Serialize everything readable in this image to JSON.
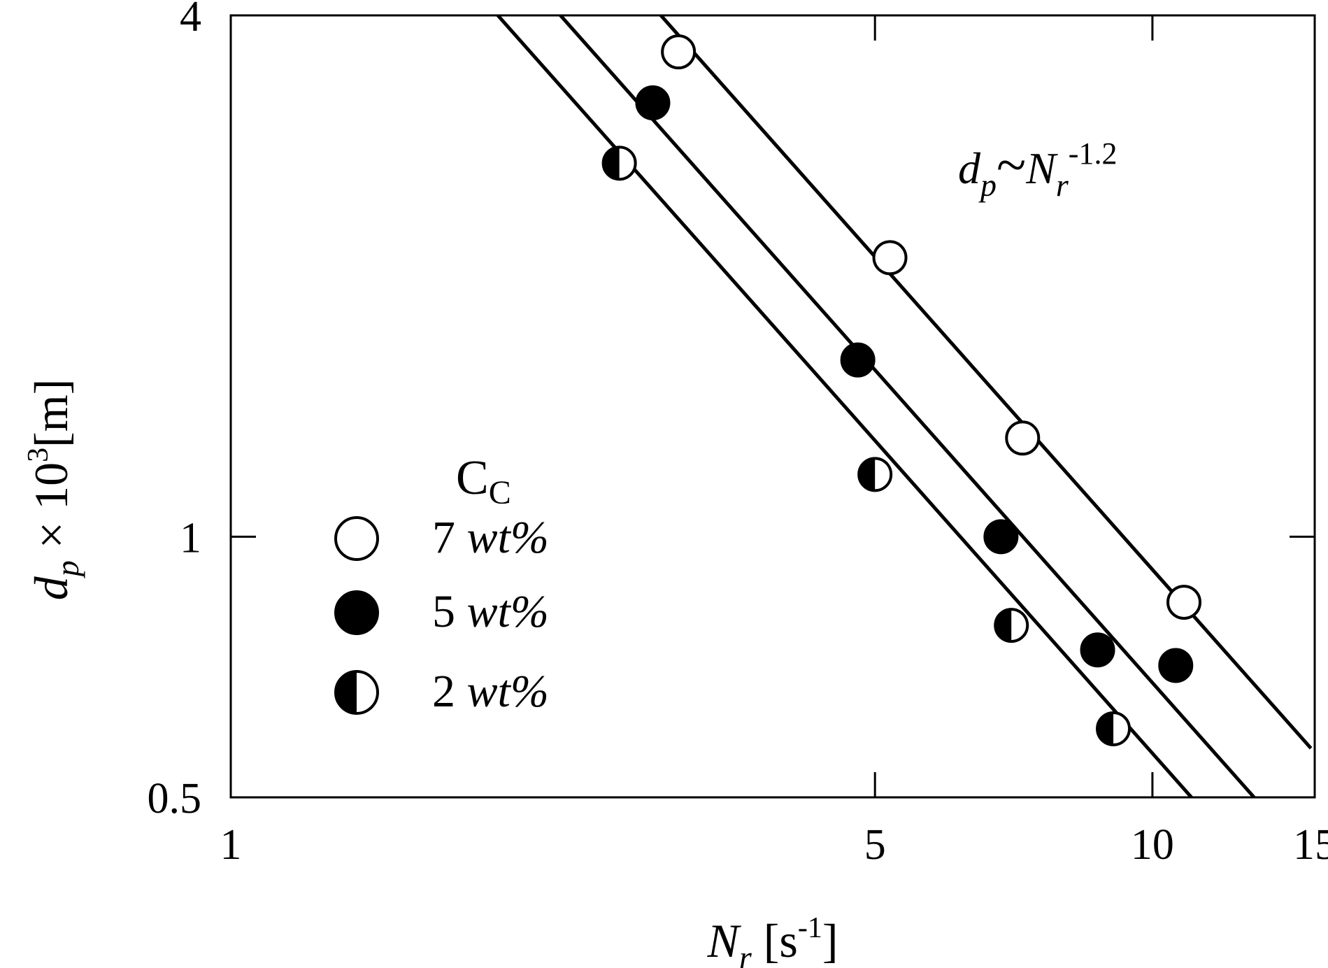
{
  "chart_data": {
    "type": "scatter",
    "x_scale": "log",
    "y_scale": "log",
    "xlim": [
      1,
      15
    ],
    "ylim": [
      0.5,
      4
    ],
    "x_ticks": [
      1,
      5,
      10,
      15
    ],
    "x_tick_labels": [
      "1",
      "5",
      "10",
      "15"
    ],
    "y_ticks": [
      0.5,
      1,
      4
    ],
    "y_tick_labels": [
      "0.5",
      "1",
      "4"
    ],
    "xlabel": {
      "symbol": "N",
      "sub": "r",
      "unit_open": " [s",
      "unit_sup": "-1",
      "unit_close": "]"
    },
    "ylabel": {
      "symbol": "d",
      "sub": "p",
      "mid": " × 10",
      "sup": "3",
      "unit": "[m]"
    },
    "legend": {
      "title_main": "C",
      "title_sub": "C",
      "position": "lower-left"
    },
    "annotation": {
      "d": "d",
      "d_sub": "p",
      "tilde": "~",
      "n": "N",
      "n_sub": "r",
      "exponent": "-1.2"
    },
    "fit_slope": -1.2,
    "grid": false,
    "series": [
      {
        "num": "7",
        "unit": " wt%",
        "marker": "open",
        "x": [
          3.06,
          5.19,
          7.23,
          10.82
        ],
        "y": [
          3.63,
          2.1,
          1.3,
          0.84
        ],
        "fit": {
          "x_start": 2.84,
          "y_at_start": 4.15,
          "x_end": 14.86
        }
      },
      {
        "num": "5",
        "unit": " wt%",
        "marker": "filled",
        "x": [
          2.87,
          4.79,
          6.85,
          8.72,
          10.6
        ],
        "y": [
          3.17,
          1.6,
          1.0,
          0.74,
          0.71
        ],
        "fit": {
          "x_start": 2.21,
          "y_at_start": 4.15,
          "x_end": 13.93
        }
      },
      {
        "num": "2",
        "unit": " wt%",
        "marker": "half",
        "x": [
          2.64,
          5.0,
          7.03,
          9.07
        ],
        "y": [
          2.7,
          1.18,
          0.79,
          0.6
        ],
        "fit": {
          "x_start": 1.89,
          "y_at_start": 4.15,
          "x_end": 11.8
        }
      }
    ]
  }
}
